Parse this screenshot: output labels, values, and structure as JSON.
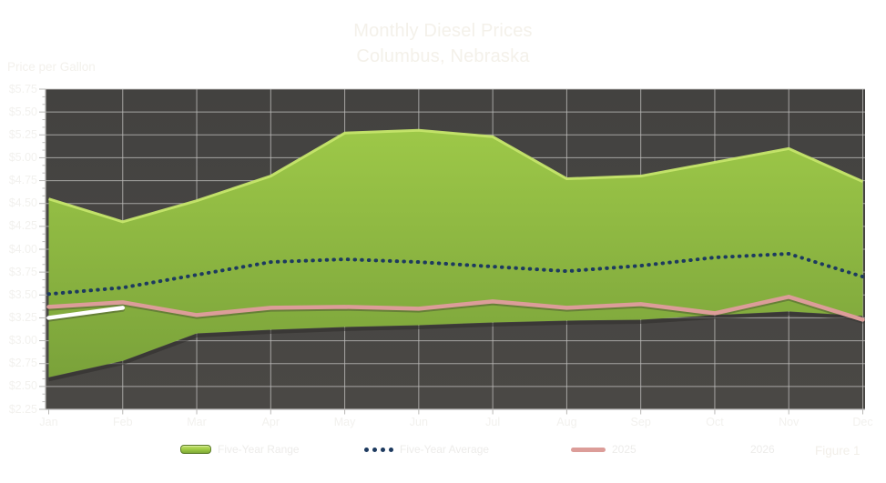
{
  "title": {
    "line1": "Monthly Diesel Prices",
    "line2": "Columbus, Nebraska"
  },
  "y_axis_title": "Price per Gallon",
  "figure_label": "Figure 1",
  "legend": {
    "items": [
      {
        "label": "Five-Year Range",
        "swatch": "range-area"
      },
      {
        "label": "Five-Year Average",
        "swatch": "dotted-navy"
      },
      {
        "label": "2025",
        "swatch": "pink-line"
      },
      {
        "label": "2026",
        "swatch": "white-line"
      }
    ]
  },
  "chart_data": {
    "type": "area",
    "title": "Monthly Diesel Prices — Columbus, Nebraska",
    "xlabel": "",
    "ylabel": "Price per Gallon",
    "ylim": [
      2.25,
      5.75
    ],
    "y_tick_step": 0.25,
    "y_tick_labels": [
      "$5.75",
      "$5.50",
      "$5.25",
      "$5.00",
      "$4.75",
      "$4.50",
      "$4.25",
      "$4.00",
      "$3.75",
      "$3.50",
      "$3.25",
      "$3.00",
      "$2.75",
      "$2.50",
      "$2.25"
    ],
    "categories": [
      "Jan",
      "Feb",
      "Mar",
      "Apr",
      "May",
      "Jun",
      "Jul",
      "Aug",
      "Sep",
      "Oct",
      "Nov",
      "Dec"
    ],
    "grid": true,
    "legend_position": "bottom",
    "series": [
      {
        "name": "Five-Year Range",
        "type": "range_area",
        "fill_top": "#9dc848",
        "fill_bottom": "#7aa23a",
        "edge_highlight": "#c6e66c",
        "upper": [
          4.55,
          4.3,
          4.53,
          4.8,
          5.27,
          5.3,
          5.23,
          4.77,
          4.8,
          4.95,
          5.1,
          4.74
        ],
        "lower": [
          2.6,
          2.78,
          3.08,
          3.12,
          3.15,
          3.17,
          3.2,
          3.22,
          3.23,
          3.28,
          3.32,
          3.27
        ]
      },
      {
        "name": "Five-Year Average",
        "type": "dotted_line",
        "color": "#1d3a5f",
        "values": [
          3.51,
          3.58,
          3.72,
          3.86,
          3.89,
          3.86,
          3.81,
          3.76,
          3.82,
          3.91,
          3.95,
          3.7
        ]
      },
      {
        "name": "2025",
        "type": "line",
        "color": "#dc9d99",
        "values": [
          3.37,
          3.42,
          3.28,
          3.36,
          3.37,
          3.35,
          3.43,
          3.36,
          3.4,
          3.3,
          3.48,
          3.23
        ]
      },
      {
        "name": "2026",
        "type": "line",
        "color": "#ffffff",
        "values": [
          3.25,
          3.36,
          null,
          null,
          null,
          null,
          null,
          null,
          null,
          null,
          null,
          null
        ]
      }
    ]
  },
  "colors": {
    "page_background": "#6b6a67",
    "plot_background": "#454341",
    "gridline": "#bdbcba",
    "axis": "#b9b8b6",
    "text": "#f2f1ee"
  }
}
